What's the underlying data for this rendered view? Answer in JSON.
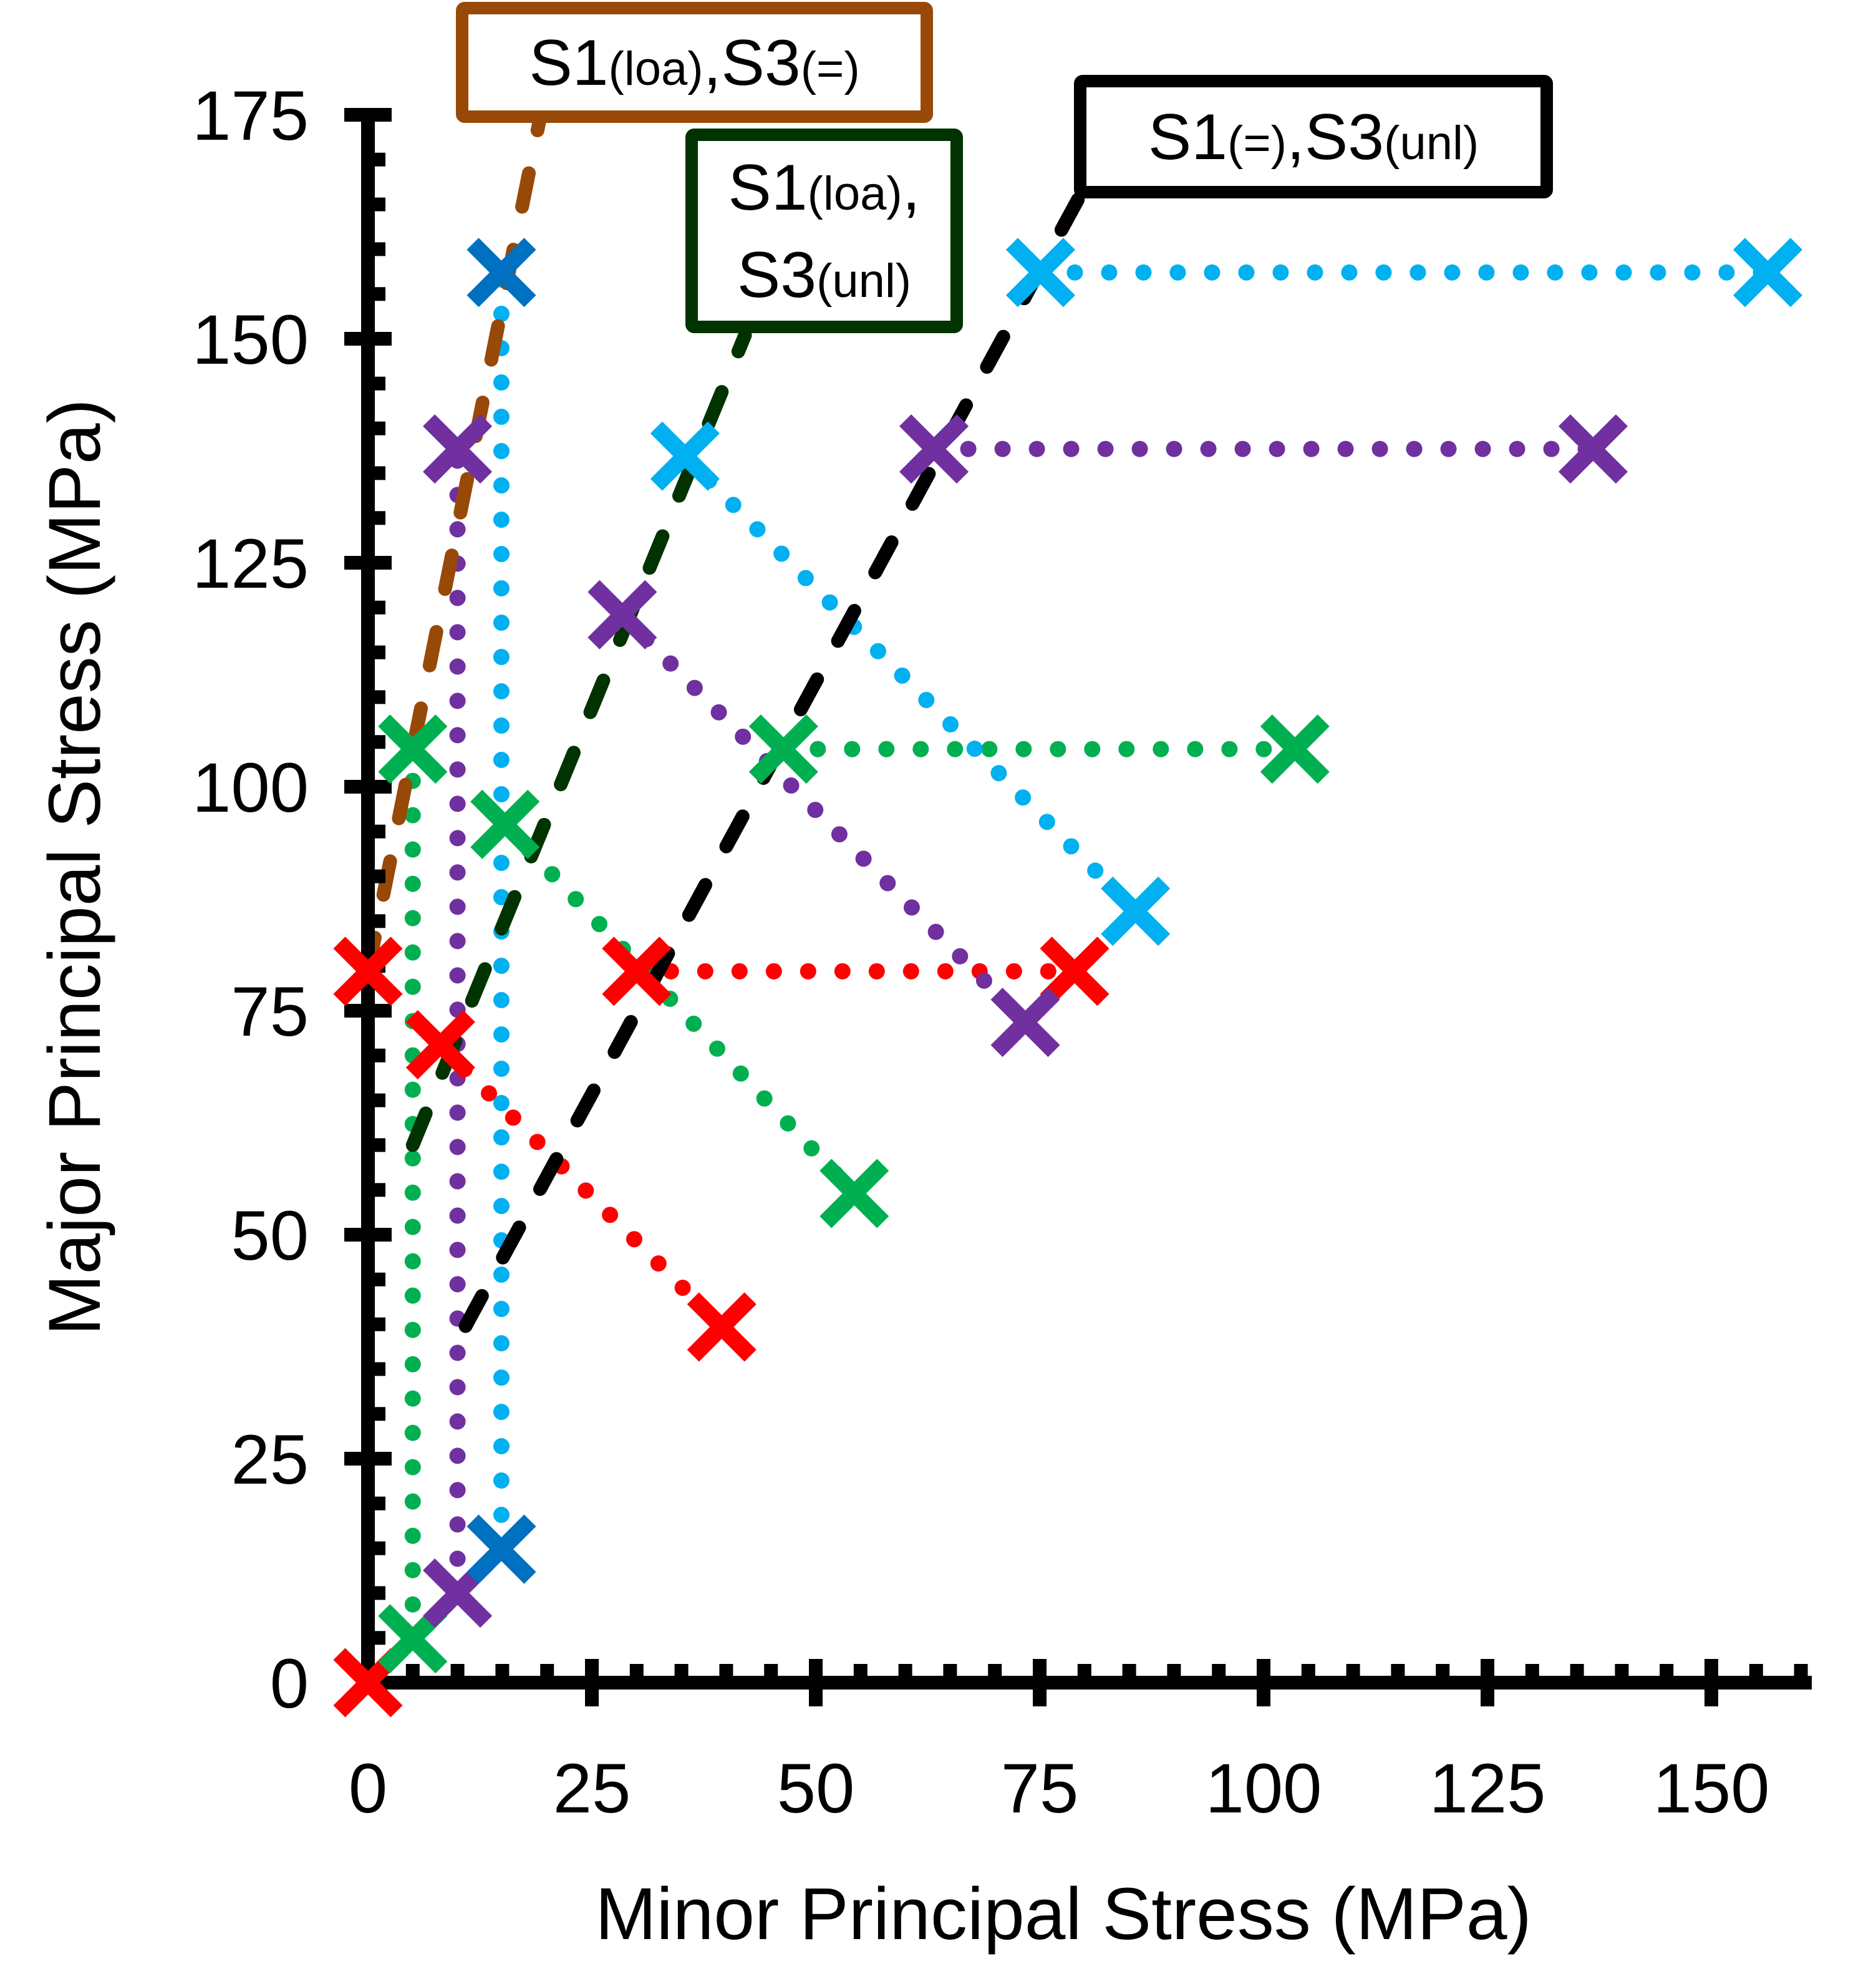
{
  "chart_data": {
    "type": "scatter",
    "title": "",
    "xlabel": "Minor  Principal  Stress  (MPa)",
    "ylabel": "Major  Principal  Stress  (MPa)",
    "xlim": [
      0,
      160
    ],
    "ylim": [
      0,
      175
    ],
    "x_ticks": [
      0,
      25,
      50,
      75,
      100,
      125,
      150
    ],
    "y_ticks": [
      0,
      25,
      50,
      75,
      100,
      125,
      150,
      175
    ],
    "x_tick_labels": [
      "0",
      "25",
      "50",
      "75",
      "100",
      "125",
      "150"
    ],
    "y_tick_labels": [
      "0",
      "25",
      "50",
      "75",
      "100",
      "125",
      "150",
      "175"
    ],
    "minor_tick_step": 5,
    "grid": false,
    "legend": "none",
    "marker": "x",
    "series": [
      {
        "name": "red-path",
        "color": "#FF0000",
        "marker_color": "#FF0000",
        "segments": [
          {
            "style": "dashed",
            "points": [
              [
                0,
                0
              ],
              [
                0,
                79.4
              ]
            ]
          },
          {
            "style": "dotted",
            "points": [
              [
                8.1,
                71.2
              ],
              [
                39.5,
                39.7
              ]
            ]
          },
          {
            "style": "dotted",
            "points": [
              [
                30,
                79.4
              ],
              [
                78.9,
                79.4
              ]
            ]
          }
        ],
        "markers": [
          [
            0,
            0
          ],
          [
            0,
            79.4
          ],
          [
            8.1,
            71.2
          ],
          [
            39.5,
            39.7
          ],
          [
            30,
            79.4
          ],
          [
            78.9,
            79.4
          ]
        ]
      },
      {
        "name": "green-path",
        "color": "#00B050",
        "marker_color": "#00B050",
        "segments": [
          {
            "style": "dotted",
            "points": [
              [
                5,
                4.9
              ],
              [
                5,
                104.2
              ]
            ]
          },
          {
            "style": "dotted",
            "points": [
              [
                15.3,
                95.8
              ],
              [
                54.3,
                54.6
              ]
            ]
          },
          {
            "style": "dotted",
            "points": [
              [
                46.4,
                104.2
              ],
              [
                103.5,
                104.2
              ]
            ]
          }
        ],
        "markers": [
          [
            5,
            4.9
          ],
          [
            5,
            104.2
          ],
          [
            15.3,
            95.8
          ],
          [
            54.3,
            54.6
          ],
          [
            46.4,
            104.2
          ],
          [
            103.5,
            104.2
          ]
        ]
      },
      {
        "name": "purple-path",
        "color": "#7030A0",
        "marker_color": "#7030A0",
        "segments": [
          {
            "style": "dotted",
            "points": [
              [
                10,
                10
              ],
              [
                10,
                137.7
              ]
            ]
          },
          {
            "style": "dotted",
            "points": [
              [
                28.4,
                119.2
              ],
              [
                73.4,
                73.7
              ]
            ]
          },
          {
            "style": "dotted",
            "points": [
              [
                63.2,
                137.7
              ],
              [
                136.8,
                137.7
              ]
            ]
          }
        ],
        "markers": [
          [
            10,
            10
          ],
          [
            10,
            137.7
          ],
          [
            28.4,
            119.2
          ],
          [
            73.4,
            73.7
          ],
          [
            63.2,
            137.7
          ],
          [
            136.8,
            137.7
          ]
        ]
      },
      {
        "name": "cyan-path",
        "color": "#00B0F0",
        "marker_color": "#00B0F0",
        "segments": [
          {
            "style": "dotted",
            "points": [
              [
                14.9,
                14.9
              ],
              [
                14.9,
                157.4
              ]
            ]
          },
          {
            "style": "dotted",
            "points": [
              [
                35.4,
                136.9
              ],
              [
                85.7,
                86.1
              ]
            ]
          },
          {
            "style": "dotted",
            "points": [
              [
                75.1,
                157.4
              ],
              [
                156.3,
                157.4
              ]
            ]
          }
        ],
        "markers": [
          [
            35.4,
            136.9
          ],
          [
            85.7,
            86.1
          ],
          [
            75.1,
            157.4
          ],
          [
            156.3,
            157.4
          ]
        ],
        "alt_markers": {
          "color": "#0070C0",
          "points": [
            [
              14.9,
              14.9
            ],
            [
              14.9,
              157.4
            ]
          ]
        }
      }
    ],
    "reference_lines": [
      {
        "name": "S1(loa),S3(=)",
        "color": "#984807",
        "style": "dashed",
        "points": [
          [
            0,
            79.4
          ],
          [
            19.2,
            174.6
          ]
        ]
      },
      {
        "name": "S1(loa),S3(unl)",
        "color": "#003300",
        "style": "dashed",
        "points": [
          [
            5,
            60
          ],
          [
            42.1,
            150.4
          ]
        ]
      },
      {
        "name": "S1(=),S3(unl)",
        "color": "#000000",
        "style": "dashed",
        "points": [
          [
            10.9,
            39.8
          ],
          [
            79.9,
            166.7
          ]
        ]
      }
    ]
  },
  "annotations": [
    {
      "id": "brown",
      "color": "#984807",
      "lines": [
        [
          {
            "t": "S1",
            "sub": false
          },
          {
            "t": "(loa)",
            "sub": true
          },
          {
            "t": ",S3",
            "sub": false
          },
          {
            "t": "(=)",
            "sub": true
          }
        ]
      ]
    },
    {
      "id": "green",
      "color": "#003300",
      "lines": [
        [
          {
            "t": "S1",
            "sub": false
          },
          {
            "t": "(loa)",
            "sub": true
          },
          {
            "t": ",",
            "sub": false
          }
        ],
        [
          {
            "t": "S3",
            "sub": false
          },
          {
            "t": "(unl)",
            "sub": true
          }
        ]
      ]
    },
    {
      "id": "black",
      "color": "#000000",
      "lines": [
        [
          {
            "t": "S1",
            "sub": false
          },
          {
            "t": "(=)",
            "sub": true
          },
          {
            "t": ",S3",
            "sub": false
          },
          {
            "t": "(unl)",
            "sub": true
          }
        ]
      ]
    }
  ]
}
